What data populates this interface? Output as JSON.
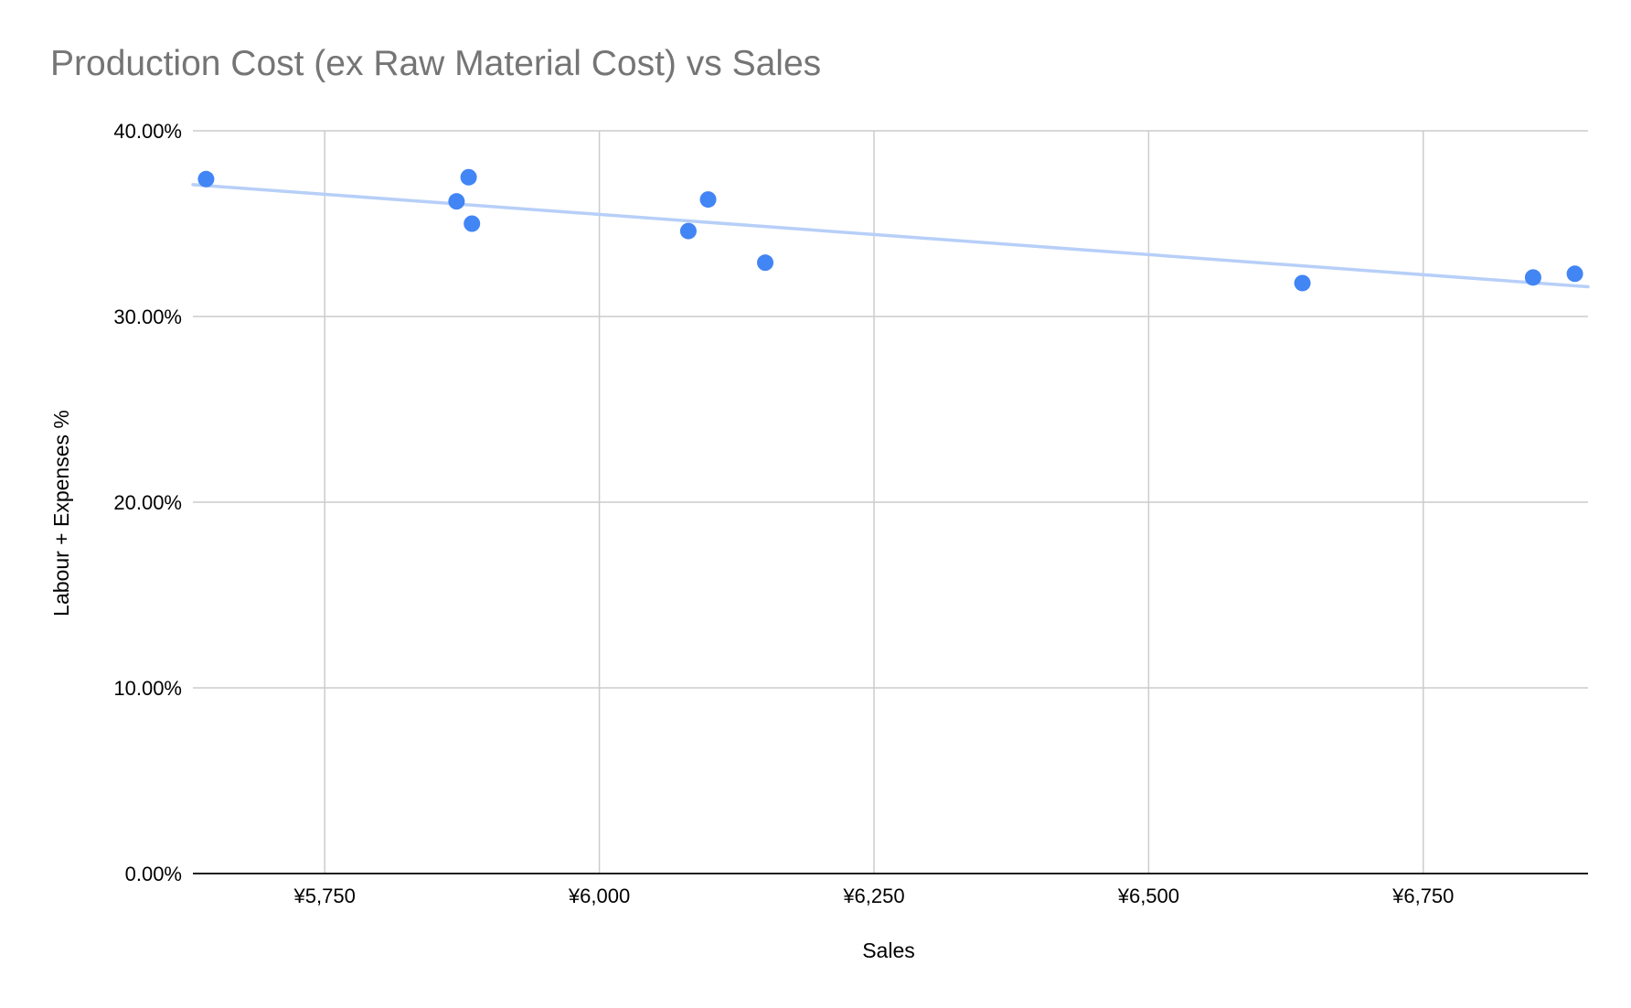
{
  "chart_data": {
    "type": "scatter",
    "title": "Production Cost (ex Raw Material Cost) vs Sales",
    "xlabel": "Sales",
    "ylabel": "Labour + Expenses %",
    "xlim": [
      5630,
      6900
    ],
    "ylim": [
      0,
      40
    ],
    "x_ticks": [
      {
        "value": 5750,
        "label": "¥5,750"
      },
      {
        "value": 6000,
        "label": "¥6,000"
      },
      {
        "value": 6250,
        "label": "¥6,250"
      },
      {
        "value": 6500,
        "label": "¥6,500"
      },
      {
        "value": 6750,
        "label": "¥6,750"
      }
    ],
    "y_ticks": [
      {
        "value": 0,
        "label": "0.00%"
      },
      {
        "value": 10,
        "label": "10.00%"
      },
      {
        "value": 20,
        "label": "20.00%"
      },
      {
        "value": 30,
        "label": "30.00%"
      },
      {
        "value": 40,
        "label": "40.00%"
      }
    ],
    "grid": true,
    "legend": "none",
    "colors": {
      "points": "#4285f4",
      "trendline": "#b7cff8",
      "grid": "#cccccc",
      "axis": "#000000",
      "title": "#757575"
    },
    "series": [
      {
        "x": [
          5642,
          5870,
          5881,
          5884,
          6081,
          6099,
          6151,
          6640,
          6850,
          6888
        ],
        "y": [
          37.4,
          36.2,
          37.5,
          35.0,
          34.6,
          36.3,
          32.9,
          31.8,
          32.1,
          32.3
        ]
      }
    ],
    "trendline": {
      "type": "linear",
      "x": [
        5630,
        6900
      ],
      "y": [
        37.1,
        31.6
      ]
    }
  }
}
